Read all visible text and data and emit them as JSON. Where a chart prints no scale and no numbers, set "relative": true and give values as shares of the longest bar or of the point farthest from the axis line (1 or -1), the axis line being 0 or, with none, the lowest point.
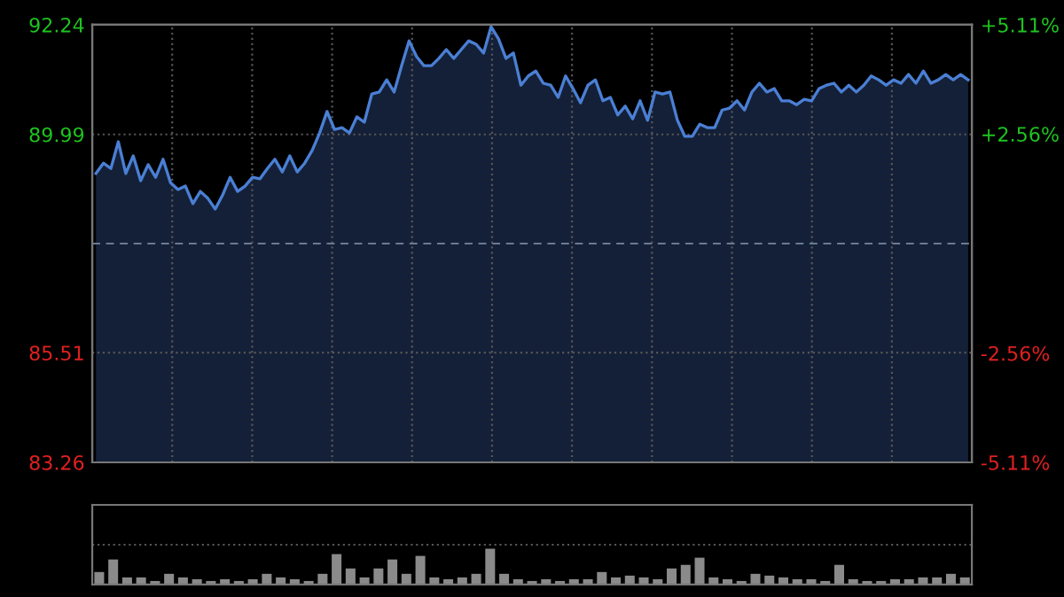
{
  "chart_data": [
    {
      "type": "area",
      "categories": [
        null,
        null,
        null,
        null,
        null,
        null,
        null,
        null,
        null,
        null,
        null,
        null,
        null,
        null,
        null,
        null,
        null,
        null,
        null,
        null,
        null,
        null,
        null,
        null,
        null,
        null,
        null,
        null,
        null,
        null,
        null,
        null,
        null,
        null,
        null,
        null,
        null,
        null,
        null,
        null,
        null,
        null,
        null,
        null,
        null,
        null,
        null,
        null,
        null,
        null,
        null,
        null,
        null,
        null,
        null,
        null,
        null,
        null,
        null,
        null,
        null,
        null,
        null,
        null,
        null,
        null,
        null,
        null,
        null,
        null,
        null,
        null,
        null,
        null,
        null,
        null,
        null,
        null,
        null,
        null,
        null,
        null,
        null,
        null,
        null,
        null,
        null,
        null,
        null,
        null,
        null,
        null,
        null,
        null,
        null,
        null,
        null,
        null,
        null,
        null,
        null,
        null,
        null,
        null,
        null,
        null,
        null,
        null,
        null,
        null,
        null,
        null,
        null,
        null,
        null,
        null,
        null,
        null
      ],
      "series": [
        {
          "color": "#4a7fd4",
          "values": [
            89.19,
            89.4,
            89.29,
            89.84,
            89.19,
            89.55,
            89.04,
            89.37,
            89.11,
            89.48,
            89.0,
            88.86,
            88.93,
            88.57,
            88.82,
            88.68,
            88.46,
            88.75,
            89.11,
            88.82,
            88.93,
            89.11,
            89.08,
            89.29,
            89.48,
            89.22,
            89.55,
            89.22,
            89.4,
            89.66,
            90.02,
            90.46,
            90.09,
            90.13,
            90.02,
            90.35,
            90.24,
            90.82,
            90.86,
            91.11,
            90.86,
            91.4,
            91.91,
            91.59,
            91.4,
            91.4,
            91.55,
            91.73,
            91.55,
            91.73,
            91.91,
            91.84,
            91.66,
            92.2,
            91.95,
            91.55,
            91.66,
            91.0,
            91.19,
            91.29,
            91.04,
            91.0,
            90.75,
            91.19,
            90.93,
            90.64,
            91.0,
            91.11,
            90.68,
            90.75,
            90.39,
            90.57,
            90.31,
            90.68,
            90.28,
            90.86,
            90.82,
            90.86,
            90.28,
            89.95,
            89.95,
            90.2,
            90.13,
            90.13,
            90.49,
            90.53,
            90.68,
            90.49,
            90.86,
            91.04,
            90.86,
            90.93,
            90.68,
            90.68,
            90.6,
            90.71,
            90.68,
            90.93,
            91.0,
            91.04,
            90.86,
            91.0,
            90.86,
            91.0,
            91.19,
            91.11,
            91.0,
            91.11,
            91.04,
            91.22,
            91.04,
            91.29,
            91.04,
            91.11,
            91.22,
            91.11,
            91.22,
            91.11
          ]
        }
      ],
      "ylim": [
        83.26,
        92.24
      ],
      "yticks": [
        83.26,
        85.51,
        89.99,
        92.24
      ],
      "y2lim": [
        -5.11,
        5.11
      ],
      "y2ticks": [
        {
          "value": -5.11,
          "label": "-5.11%"
        },
        {
          "value": -2.56,
          "label": "-2.56%"
        },
        {
          "value": 2.56,
          "label": "+2.56%"
        },
        {
          "value": 5.11,
          "label": "+5.11%"
        }
      ],
      "ref_lines": [
        {
          "axis": "y2",
          "value": 0,
          "color": "#6a7a90",
          "line_style": "dashed"
        }
      ],
      "grid": true,
      "legend": false
    },
    {
      "type": "bar",
      "relative": true,
      "categories": [
        null,
        null,
        null,
        null,
        null,
        null,
        null,
        null,
        null,
        null,
        null,
        null,
        null,
        null,
        null,
        null,
        null,
        null,
        null,
        null,
        null,
        null,
        null,
        null,
        null,
        null,
        null,
        null,
        null,
        null,
        null,
        null,
        null,
        null,
        null,
        null,
        null,
        null,
        null,
        null,
        null,
        null,
        null,
        null,
        null,
        null,
        null,
        null,
        null,
        null,
        null,
        null,
        null,
        null,
        null,
        null,
        null,
        null,
        null,
        null,
        null,
        null,
        null
      ],
      "series": [
        {
          "color": "#8a8a8a",
          "values": [
            0.35,
            0.7,
            0.2,
            0.2,
            0.1,
            0.3,
            0.2,
            0.15,
            0.1,
            0.15,
            0.1,
            0.15,
            0.3,
            0.2,
            0.15,
            0.1,
            0.3,
            0.85,
            0.45,
            0.2,
            0.45,
            0.7,
            0.3,
            0.8,
            0.2,
            0.15,
            0.2,
            0.3,
            1.0,
            0.3,
            0.15,
            0.1,
            0.15,
            0.1,
            0.15,
            0.15,
            0.35,
            0.2,
            0.25,
            0.2,
            0.15,
            0.45,
            0.55,
            0.75,
            0.2,
            0.15,
            0.1,
            0.3,
            0.25,
            0.2,
            0.15,
            0.15,
            0.1,
            0.55,
            0.15,
            0.1,
            0.1,
            0.15,
            0.15,
            0.2,
            0.2,
            0.3,
            0.2
          ]
        }
      ],
      "grid": "y",
      "legend": false
    }
  ]
}
